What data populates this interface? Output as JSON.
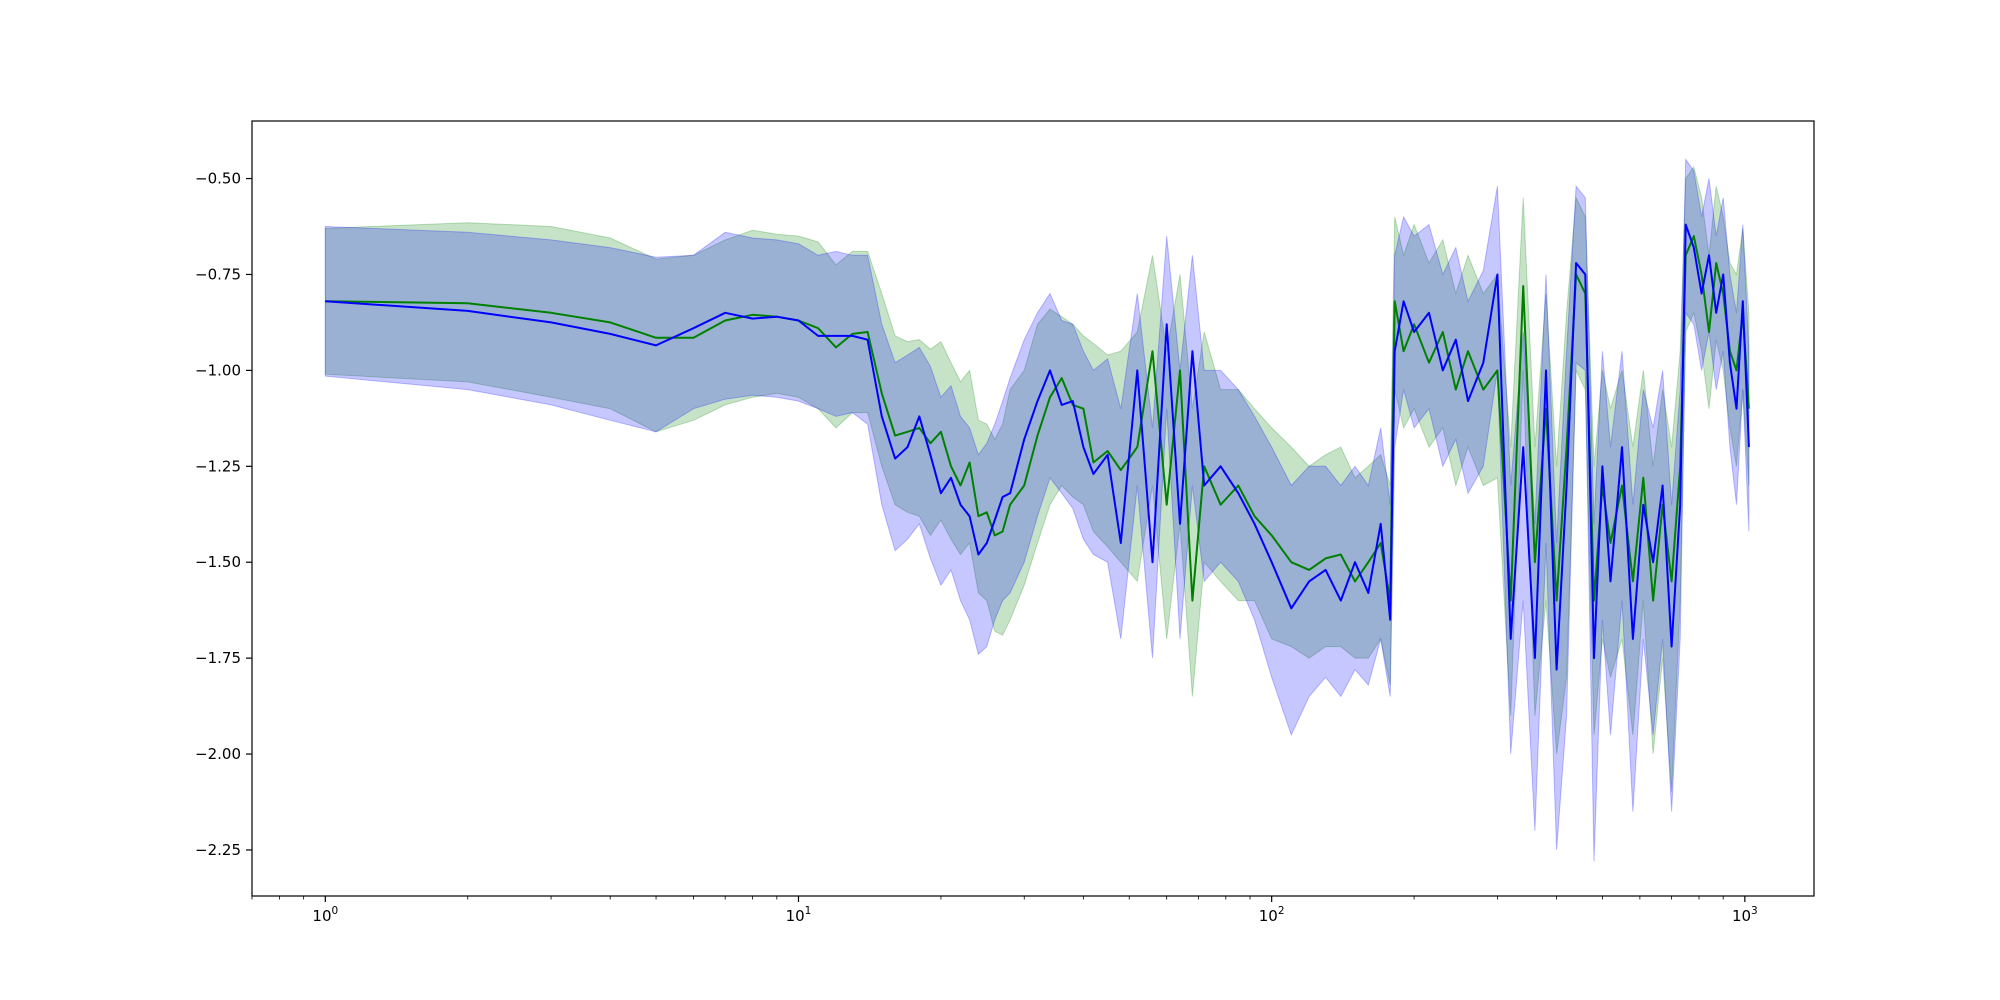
{
  "chart_data": {
    "type": "line",
    "title": "",
    "xlabel": "",
    "ylabel": "",
    "x_scale": "log",
    "xlim": [
      0.7,
      1400
    ],
    "ylim": [
      -2.37,
      -0.35
    ],
    "grid": false,
    "legend": "none",
    "x_ticks": [
      {
        "value": 1,
        "base": "10",
        "exp": "0"
      },
      {
        "value": 10,
        "base": "10",
        "exp": "1"
      },
      {
        "value": 100,
        "base": "10",
        "exp": "2"
      },
      {
        "value": 1000,
        "base": "10",
        "exp": "3"
      }
    ],
    "y_ticks": [
      {
        "value": -0.5,
        "label": "−0.50"
      },
      {
        "value": -0.75,
        "label": "−0.75"
      },
      {
        "value": -1.0,
        "label": "−1.00"
      },
      {
        "value": -1.25,
        "label": "−1.25"
      },
      {
        "value": -1.5,
        "label": "−1.50"
      },
      {
        "value": -1.75,
        "label": "−1.75"
      },
      {
        "value": -2.0,
        "label": "−2.00"
      },
      {
        "value": -2.25,
        "label": "−2.25"
      }
    ],
    "series": [
      {
        "color": "#008000",
        "band_color": "#008000",
        "points": [
          [
            1,
            -0.82,
            -0.63,
            -1.01
          ],
          [
            2,
            -0.825,
            -0.615,
            -1.03
          ],
          [
            3,
            -0.85,
            -0.625,
            -1.07
          ],
          [
            4,
            -0.875,
            -0.655,
            -1.1
          ],
          [
            5,
            -0.915,
            -0.71,
            -1.16
          ],
          [
            6,
            -0.915,
            -0.7,
            -1.13
          ],
          [
            7,
            -0.87,
            -0.66,
            -1.09
          ],
          [
            8,
            -0.855,
            -0.635,
            -1.07
          ],
          [
            9,
            -0.86,
            -0.645,
            -1.06
          ],
          [
            10,
            -0.87,
            -0.65,
            -1.07
          ],
          [
            11,
            -0.89,
            -0.665,
            -1.1
          ],
          [
            12,
            -0.94,
            -0.725,
            -1.15
          ],
          [
            13,
            -0.905,
            -0.69,
            -1.11
          ],
          [
            14,
            -0.9,
            -0.69,
            -1.11
          ],
          [
            15,
            -1.06,
            -0.8,
            -1.25
          ],
          [
            16,
            -1.17,
            -0.91,
            -1.35
          ],
          [
            17,
            -1.16,
            -0.925,
            -1.37
          ],
          [
            18,
            -1.15,
            -0.92,
            -1.38
          ],
          [
            19,
            -1.19,
            -0.945,
            -1.43
          ],
          [
            20,
            -1.16,
            -0.925,
            -1.39
          ],
          [
            21,
            -1.25,
            -0.98,
            -1.44
          ],
          [
            22,
            -1.3,
            -1.03,
            -1.48
          ],
          [
            23,
            -1.24,
            -1.0,
            -1.45
          ],
          [
            24,
            -1.38,
            -1.13,
            -1.58
          ],
          [
            25,
            -1.37,
            -1.14,
            -1.6
          ],
          [
            26,
            -1.43,
            -1.18,
            -1.68
          ],
          [
            27,
            -1.42,
            -1.14,
            -1.69
          ],
          [
            28,
            -1.35,
            -1.05,
            -1.65
          ],
          [
            30,
            -1.3,
            -1.0,
            -1.56
          ],
          [
            32,
            -1.17,
            -0.88,
            -1.45
          ],
          [
            34,
            -1.07,
            -0.84,
            -1.35
          ],
          [
            36,
            -1.02,
            -0.86,
            -1.3
          ],
          [
            38,
            -1.09,
            -0.88,
            -1.33
          ],
          [
            40,
            -1.1,
            -0.91,
            -1.35
          ],
          [
            42,
            -1.24,
            -0.93,
            -1.42
          ],
          [
            45,
            -1.21,
            -0.96,
            -1.46
          ],
          [
            48,
            -1.26,
            -0.95,
            -1.5
          ],
          [
            52,
            -1.2,
            -0.9,
            -1.55
          ],
          [
            56,
            -0.95,
            -0.7,
            -1.3
          ],
          [
            60,
            -1.35,
            -0.95,
            -1.7
          ],
          [
            64,
            -1.0,
            -0.75,
            -1.4
          ],
          [
            68,
            -1.6,
            -1.1,
            -1.85
          ],
          [
            72,
            -1.25,
            -0.9,
            -1.5
          ],
          [
            78,
            -1.35,
            -1.05,
            -1.55
          ],
          [
            85,
            -1.3,
            -1.05,
            -1.6
          ],
          [
            92,
            -1.38,
            -1.1,
            -1.6
          ],
          [
            100,
            -1.43,
            -1.15,
            -1.7
          ],
          [
            110,
            -1.5,
            -1.2,
            -1.72
          ],
          [
            120,
            -1.52,
            -1.25,
            -1.75
          ],
          [
            130,
            -1.49,
            -1.22,
            -1.72
          ],
          [
            140,
            -1.48,
            -1.2,
            -1.72
          ],
          [
            150,
            -1.55,
            -1.28,
            -1.75
          ],
          [
            160,
            -1.5,
            -1.25,
            -1.75
          ],
          [
            170,
            -1.45,
            -1.22,
            -1.7
          ],
          [
            178,
            -1.6,
            -1.3,
            -1.82
          ],
          [
            182,
            -0.82,
            -0.6,
            -1.05
          ],
          [
            190,
            -0.95,
            -0.7,
            -1.15
          ],
          [
            200,
            -0.88,
            -0.62,
            -1.1
          ],
          [
            215,
            -0.98,
            -0.72,
            -1.2
          ],
          [
            230,
            -0.9,
            -0.66,
            -1.15
          ],
          [
            245,
            -1.05,
            -0.8,
            -1.3
          ],
          [
            260,
            -0.95,
            -0.7,
            -1.2
          ],
          [
            280,
            -1.05,
            -0.8,
            -1.3
          ],
          [
            300,
            -1.0,
            -0.75,
            -1.28
          ],
          [
            320,
            -1.6,
            -1.2,
            -1.9
          ],
          [
            340,
            -0.78,
            -0.55,
            -1.0
          ],
          [
            360,
            -1.5,
            -1.2,
            -1.9
          ],
          [
            380,
            -1.1,
            -0.8,
            -1.6
          ],
          [
            400,
            -1.6,
            -1.25,
            -2.0
          ],
          [
            420,
            -1.2,
            -0.85,
            -1.8
          ],
          [
            440,
            -0.75,
            -0.55,
            -1.0
          ],
          [
            460,
            -0.8,
            -0.6,
            -1.05
          ],
          [
            480,
            -1.6,
            -1.25,
            -1.95
          ],
          [
            500,
            -1.3,
            -1.0,
            -1.7
          ],
          [
            520,
            -1.45,
            -1.1,
            -1.8
          ],
          [
            550,
            -1.3,
            -1.0,
            -1.7
          ],
          [
            580,
            -1.55,
            -1.2,
            -1.95
          ],
          [
            610,
            -1.28,
            -1.0,
            -1.6
          ],
          [
            640,
            -1.6,
            -1.25,
            -2.0
          ],
          [
            670,
            -1.35,
            -1.05,
            -1.75
          ],
          [
            700,
            -1.55,
            -1.2,
            -2.1
          ],
          [
            730,
            -1.25,
            -0.95,
            -1.6
          ],
          [
            750,
            -0.7,
            -0.5,
            -0.9
          ],
          [
            780,
            -0.65,
            -0.47,
            -0.85
          ],
          [
            810,
            -0.75,
            -0.55,
            -0.95
          ],
          [
            840,
            -0.9,
            -0.7,
            -1.1
          ],
          [
            870,
            -0.72,
            -0.52,
            -0.92
          ],
          [
            900,
            -0.8,
            -0.6,
            -1.0
          ],
          [
            930,
            -0.95,
            -0.72,
            -1.15
          ],
          [
            960,
            -1.0,
            -0.75,
            -1.25
          ],
          [
            990,
            -0.85,
            -0.63,
            -1.05
          ],
          [
            1020,
            -1.1,
            -0.85,
            -1.3
          ]
        ]
      },
      {
        "color": "#0000ff",
        "band_color": "#0000ff",
        "points": [
          [
            1,
            -0.82,
            -0.625,
            -1.015
          ],
          [
            2,
            -0.845,
            -0.64,
            -1.05
          ],
          [
            3,
            -0.875,
            -0.66,
            -1.09
          ],
          [
            4,
            -0.905,
            -0.68,
            -1.13
          ],
          [
            5,
            -0.935,
            -0.705,
            -1.16
          ],
          [
            6,
            -0.89,
            -0.7,
            -1.1
          ],
          [
            7,
            -0.85,
            -0.64,
            -1.075
          ],
          [
            8,
            -0.865,
            -0.655,
            -1.065
          ],
          [
            9,
            -0.86,
            -0.66,
            -1.07
          ],
          [
            10,
            -0.87,
            -0.67,
            -1.08
          ],
          [
            11,
            -0.91,
            -0.7,
            -1.1
          ],
          [
            12,
            -0.91,
            -0.69,
            -1.12
          ],
          [
            13,
            -0.91,
            -0.7,
            -1.11
          ],
          [
            14,
            -0.92,
            -0.7,
            -1.14
          ],
          [
            15,
            -1.12,
            -0.88,
            -1.35
          ],
          [
            16,
            -1.23,
            -0.98,
            -1.47
          ],
          [
            17,
            -1.2,
            -0.96,
            -1.44
          ],
          [
            18,
            -1.12,
            -0.94,
            -1.4
          ],
          [
            19,
            -1.22,
            -0.99,
            -1.49
          ],
          [
            20,
            -1.32,
            -1.07,
            -1.56
          ],
          [
            21,
            -1.28,
            -1.04,
            -1.52
          ],
          [
            22,
            -1.35,
            -1.12,
            -1.6
          ],
          [
            23,
            -1.38,
            -1.15,
            -1.65
          ],
          [
            24,
            -1.48,
            -1.22,
            -1.74
          ],
          [
            25,
            -1.45,
            -1.19,
            -1.72
          ],
          [
            26,
            -1.39,
            -1.14,
            -1.65
          ],
          [
            27,
            -1.33,
            -1.08,
            -1.6
          ],
          [
            28,
            -1.32,
            -1.02,
            -1.58
          ],
          [
            30,
            -1.18,
            -0.92,
            -1.5
          ],
          [
            32,
            -1.08,
            -0.85,
            -1.38
          ],
          [
            34,
            -1.0,
            -0.8,
            -1.28
          ],
          [
            36,
            -1.09,
            -0.87,
            -1.32
          ],
          [
            38,
            -1.08,
            -0.88,
            -1.36
          ],
          [
            40,
            -1.2,
            -0.95,
            -1.44
          ],
          [
            42,
            -1.27,
            -1.0,
            -1.48
          ],
          [
            45,
            -1.22,
            -0.97,
            -1.5
          ],
          [
            48,
            -1.45,
            -1.1,
            -1.7
          ],
          [
            52,
            -1.0,
            -0.8,
            -1.3
          ],
          [
            56,
            -1.5,
            -1.15,
            -1.75
          ],
          [
            60,
            -0.88,
            -0.65,
            -1.1
          ],
          [
            64,
            -1.4,
            -1.0,
            -1.7
          ],
          [
            68,
            -0.95,
            -0.7,
            -1.3
          ],
          [
            72,
            -1.3,
            -1.0,
            -1.55
          ],
          [
            78,
            -1.25,
            -1.0,
            -1.5
          ],
          [
            85,
            -1.32,
            -1.05,
            -1.55
          ],
          [
            92,
            -1.4,
            -1.12,
            -1.65
          ],
          [
            100,
            -1.5,
            -1.2,
            -1.8
          ],
          [
            110,
            -1.62,
            -1.3,
            -1.95
          ],
          [
            120,
            -1.55,
            -1.25,
            -1.85
          ],
          [
            130,
            -1.52,
            -1.25,
            -1.8
          ],
          [
            140,
            -1.6,
            -1.3,
            -1.85
          ],
          [
            150,
            -1.5,
            -1.25,
            -1.78
          ],
          [
            160,
            -1.58,
            -1.3,
            -1.82
          ],
          [
            170,
            -1.4,
            -1.15,
            -1.7
          ],
          [
            178,
            -1.65,
            -1.35,
            -1.85
          ],
          [
            182,
            -0.95,
            -0.7,
            -1.2
          ],
          [
            190,
            -0.82,
            -0.6,
            -1.05
          ],
          [
            200,
            -0.9,
            -0.65,
            -1.15
          ],
          [
            215,
            -0.85,
            -0.62,
            -1.1
          ],
          [
            230,
            -1.0,
            -0.75,
            -1.25
          ],
          [
            245,
            -0.92,
            -0.68,
            -1.18
          ],
          [
            260,
            -1.08,
            -0.82,
            -1.32
          ],
          [
            280,
            -0.98,
            -0.74,
            -1.25
          ],
          [
            300,
            -0.75,
            -0.52,
            -1.0
          ],
          [
            320,
            -1.7,
            -1.3,
            -2.0
          ],
          [
            340,
            -1.2,
            -0.9,
            -1.6
          ],
          [
            360,
            -1.75,
            -1.4,
            -2.2
          ],
          [
            380,
            -1.0,
            -0.75,
            -1.45
          ],
          [
            400,
            -1.78,
            -1.45,
            -2.25
          ],
          [
            420,
            -1.3,
            -0.95,
            -1.9
          ],
          [
            440,
            -0.72,
            -0.52,
            -0.98
          ],
          [
            460,
            -0.75,
            -0.55,
            -1.0
          ],
          [
            480,
            -1.75,
            -1.4,
            -2.28
          ],
          [
            500,
            -1.25,
            -0.95,
            -1.65
          ],
          [
            520,
            -1.55,
            -1.2,
            -1.95
          ],
          [
            550,
            -1.2,
            -0.95,
            -1.6
          ],
          [
            580,
            -1.7,
            -1.35,
            -2.15
          ],
          [
            610,
            -1.35,
            -1.05,
            -1.7
          ],
          [
            640,
            -1.5,
            -1.15,
            -1.95
          ],
          [
            670,
            -1.3,
            -1.0,
            -1.7
          ],
          [
            700,
            -1.72,
            -1.35,
            -2.15
          ],
          [
            730,
            -1.35,
            -1.05,
            -1.7
          ],
          [
            750,
            -0.62,
            -0.45,
            -0.85
          ],
          [
            780,
            -0.68,
            -0.48,
            -0.88
          ],
          [
            810,
            -0.8,
            -0.6,
            -1.0
          ],
          [
            840,
            -0.7,
            -0.5,
            -0.9
          ],
          [
            870,
            -0.85,
            -0.65,
            -1.05
          ],
          [
            900,
            -0.75,
            -0.55,
            -0.95
          ],
          [
            930,
            -0.98,
            -0.75,
            -1.2
          ],
          [
            960,
            -1.1,
            -0.85,
            -1.35
          ],
          [
            990,
            -0.82,
            -0.62,
            -1.05
          ],
          [
            1020,
            -1.2,
            -0.95,
            -1.42
          ]
        ]
      }
    ]
  }
}
